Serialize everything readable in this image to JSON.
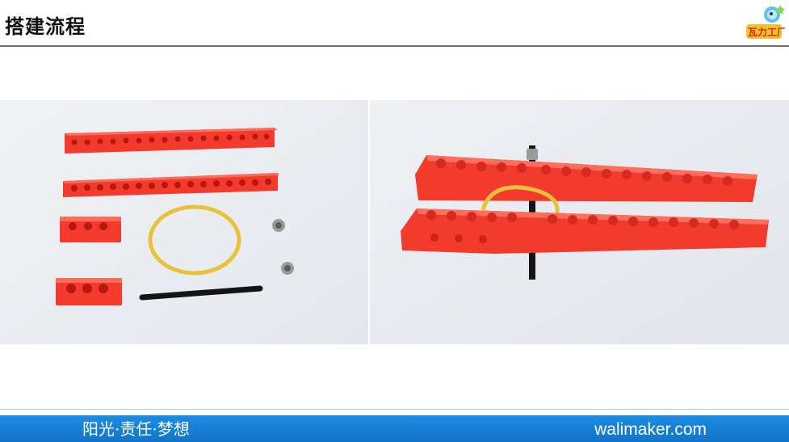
{
  "header": {
    "title": "搭建流程",
    "logo_icon": "wali-maker-logo-icon",
    "logo_text": "瓦力工厂"
  },
  "photos": [
    {
      "name": "parts-photo",
      "description_icon": "lego-parts-icon"
    },
    {
      "name": "assembly-photo",
      "description_icon": "lego-assembly-icon"
    }
  ],
  "footer": {
    "slogan": "阳光·责任·梦想",
    "website": "walimaker.com"
  },
  "colors": {
    "brick_red": "#f0352c",
    "footer_blue": "#1a86dc",
    "band_yellow": "#e9c23a",
    "axle_black": "#141414"
  }
}
